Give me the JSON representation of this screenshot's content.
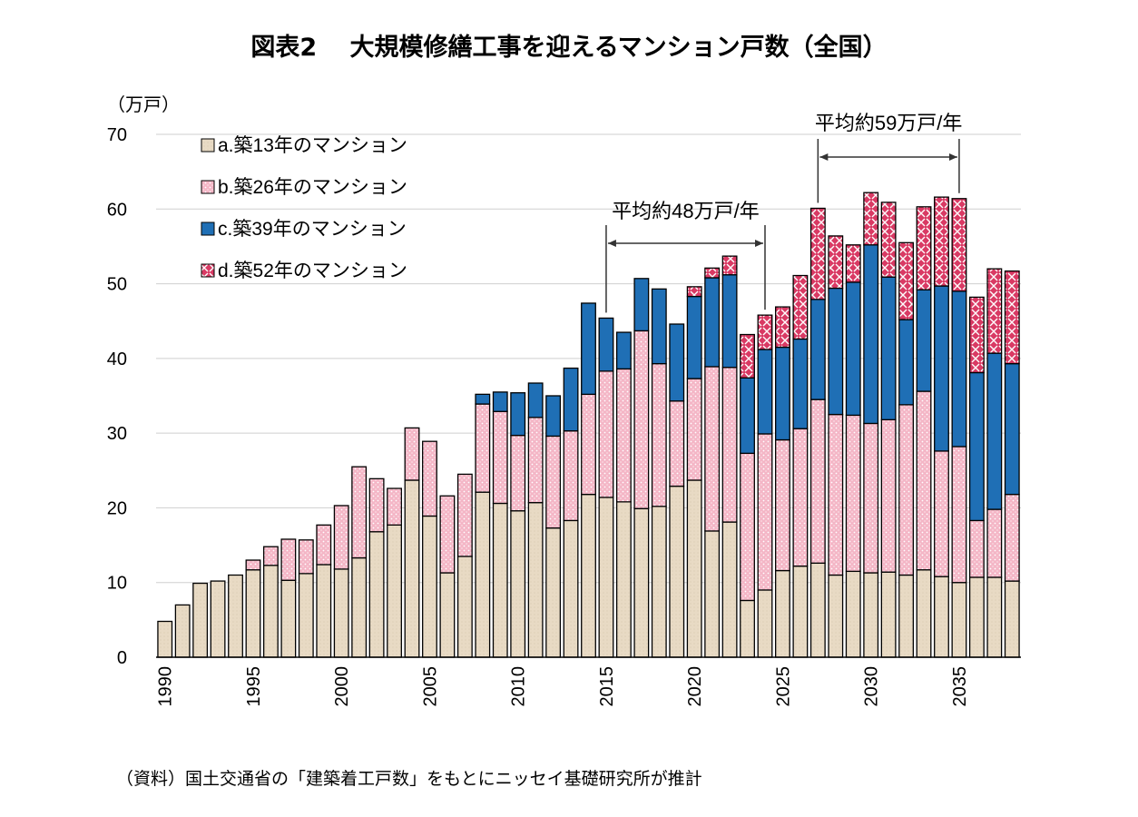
{
  "title": "図表2　 大規模修繕工事を迎えるマンション戸数（全国）",
  "source": "（資料）国土交通省の「建築着工戸数」をもとにニッセイ基礎研究所が推計",
  "chart_data": {
    "type": "bar",
    "stacked": true,
    "ylabel": "（万戸）",
    "ylim": [
      0,
      70
    ],
    "yticks": [
      0,
      10,
      20,
      30,
      40,
      50,
      60,
      70
    ],
    "x": [
      1990,
      1991,
      1992,
      1993,
      1994,
      1995,
      1996,
      1997,
      1998,
      1999,
      2000,
      2001,
      2002,
      2003,
      2004,
      2005,
      2006,
      2007,
      2008,
      2009,
      2010,
      2011,
      2012,
      2013,
      2014,
      2015,
      2016,
      2017,
      2018,
      2019,
      2020,
      2021,
      2022,
      2023,
      2024,
      2025,
      2026,
      2027,
      2028,
      2029,
      2030,
      2031,
      2032,
      2033,
      2034,
      2035,
      2036,
      2037,
      2038
    ],
    "xtick_labels": [
      "1990",
      "1995",
      "2000",
      "2005",
      "2010",
      "2015",
      "2020",
      "2025",
      "2030",
      "2035"
    ],
    "series": [
      {
        "name": "a.築13年のマンション",
        "color": "#e8dac4",
        "values": [
          4.8,
          7.0,
          9.9,
          10.2,
          11.0,
          11.7,
          12.3,
          10.3,
          11.2,
          12.4,
          11.8,
          13.3,
          16.8,
          17.7,
          23.7,
          18.9,
          11.3,
          13.5,
          22.1,
          20.6,
          19.6,
          20.7,
          17.3,
          18.3,
          21.8,
          21.4,
          20.8,
          19.9,
          20.2,
          22.9,
          23.7,
          16.9,
          18.1,
          7.6,
          9.0,
          11.6,
          12.2,
          12.6,
          11.0,
          11.5,
          11.3,
          11.4,
          11.0,
          11.7,
          10.8,
          10.0,
          10.7,
          10.7,
          10.2
        ]
      },
      {
        "name": "b.築26年のマンション",
        "color": "#f4b6c6",
        "values": [
          0,
          0,
          0,
          0,
          0,
          1.3,
          2.5,
          5.5,
          4.5,
          5.3,
          8.5,
          12.2,
          7.1,
          4.9,
          7.0,
          10.0,
          10.3,
          11.0,
          11.8,
          12.3,
          10.1,
          11.4,
          12.3,
          12.0,
          13.4,
          16.9,
          17.8,
          23.8,
          19.1,
          11.4,
          13.6,
          22.0,
          20.7,
          19.7,
          20.9,
          17.5,
          18.4,
          21.9,
          21.5,
          20.9,
          20.0,
          20.4,
          22.8,
          23.9,
          16.8,
          18.2,
          7.6,
          9.1,
          11.6
        ]
      },
      {
        "name": "c.築39年のマンション",
        "color": "#1f6fb5",
        "values": [
          0,
          0,
          0,
          0,
          0,
          0,
          0,
          0,
          0,
          0,
          0,
          0,
          0,
          0,
          0,
          0,
          0,
          0,
          1.3,
          2.6,
          5.7,
          4.6,
          5.4,
          8.4,
          12.2,
          7.1,
          4.9,
          7.0,
          10.0,
          10.3,
          11.0,
          11.9,
          12.4,
          10.1,
          11.3,
          12.4,
          12.0,
          13.4,
          16.9,
          17.8,
          23.9,
          19.1,
          11.4,
          13.6,
          22.1,
          20.8,
          19.8,
          20.9,
          17.5
        ]
      },
      {
        "name": "d.築52年のマンション",
        "color": "#d93a64",
        "values": [
          0,
          0,
          0,
          0,
          0,
          0,
          0,
          0,
          0,
          0,
          0,
          0,
          0,
          0,
          0,
          0,
          0,
          0,
          0,
          0,
          0,
          0,
          0,
          0,
          0,
          0,
          0,
          0,
          0,
          0,
          1.3,
          1.3,
          2.5,
          5.8,
          4.6,
          5.4,
          8.5,
          12.2,
          7.0,
          5.0,
          7.0,
          10.0,
          10.3,
          11.1,
          11.9,
          12.4,
          10.1,
          11.3,
          12.4
        ]
      }
    ],
    "annotations": [
      {
        "text": "平均約48万戸/年",
        "from": 2015,
        "to": 2024
      },
      {
        "text": "平均約59万戸/年",
        "from": 2027,
        "to": 2035
      }
    ]
  }
}
